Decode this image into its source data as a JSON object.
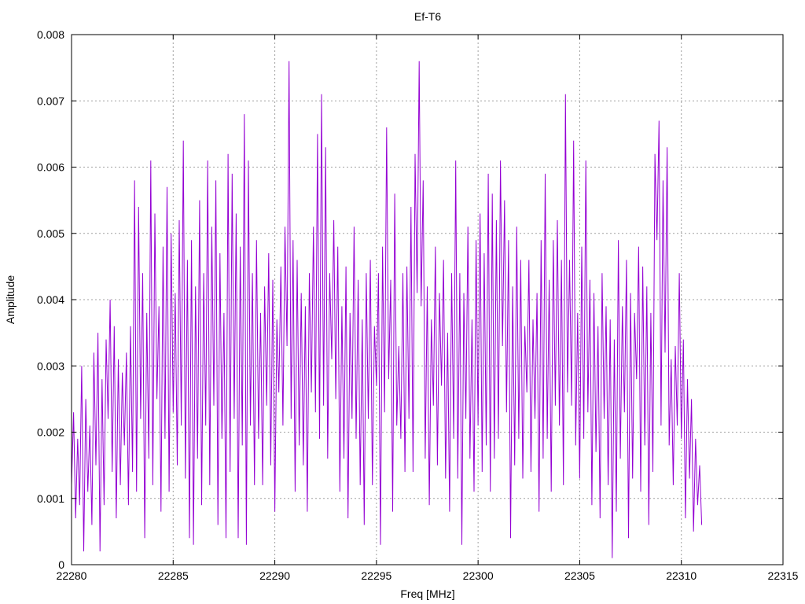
{
  "chart_data": {
    "type": "line",
    "title": "Ef-T6",
    "xlabel": "Freq [MHz]",
    "ylabel": "Amplitude",
    "xlim": [
      22280,
      22315
    ],
    "ylim": [
      0,
      0.008
    ],
    "grid": true,
    "legend": "none",
    "x_ticks": [
      "22280",
      "22285",
      "22290",
      "22295",
      "22300",
      "22305",
      "22310",
      "22315"
    ],
    "y_ticks": [
      "0",
      "0.001",
      "0.002",
      "0.003",
      "0.004",
      "0.005",
      "0.006",
      "0.007",
      "0.008"
    ],
    "series": [
      {
        "color": "#9400d3",
        "x_start": 22280.0,
        "x_step": 0.1,
        "values": [
          0.0012,
          0.0023,
          0.0007,
          0.0019,
          0.0009,
          0.003,
          0.0002,
          0.0025,
          0.0011,
          0.0021,
          0.0006,
          0.0032,
          0.0015,
          0.0035,
          0.0002,
          0.0028,
          0.0009,
          0.0034,
          0.0022,
          0.004,
          0.0014,
          0.0036,
          0.0007,
          0.0031,
          0.0012,
          0.0029,
          0.0018,
          0.0032,
          0.0009,
          0.0036,
          0.0014,
          0.0058,
          0.0011,
          0.0054,
          0.0022,
          0.0044,
          0.0004,
          0.0038,
          0.0016,
          0.0061,
          0.0012,
          0.0053,
          0.0025,
          0.0039,
          0.0008,
          0.0048,
          0.0019,
          0.0057,
          0.0011,
          0.005,
          0.0023,
          0.0041,
          0.0015,
          0.0052,
          0.0021,
          0.0064,
          0.0013,
          0.0046,
          0.0004,
          0.0049,
          0.0003,
          0.0042,
          0.0016,
          0.0055,
          0.0009,
          0.0044,
          0.0021,
          0.0061,
          0.0012,
          0.0051,
          0.0024,
          0.0058,
          0.0006,
          0.0047,
          0.0019,
          0.0038,
          0.0004,
          0.0062,
          0.0014,
          0.0059,
          0.0022,
          0.0053,
          0.0004,
          0.0048,
          0.0018,
          0.0068,
          0.0003,
          0.0061,
          0.0021,
          0.0044,
          0.0012,
          0.0049,
          0.0019,
          0.0038,
          0.0012,
          0.0042,
          0.0024,
          0.0047,
          0.0015,
          0.0043,
          0.0008,
          0.0037,
          0.0026,
          0.0045,
          0.0021,
          0.0051,
          0.0033,
          0.0076,
          0.0022,
          0.0049,
          0.0011,
          0.0046,
          0.0018,
          0.0041,
          0.0015,
          0.0039,
          0.0008,
          0.0044,
          0.0026,
          0.0051,
          0.0023,
          0.0065,
          0.0019,
          0.0071,
          0.0024,
          0.0063,
          0.0016,
          0.0044,
          0.0031,
          0.0052,
          0.0025,
          0.0048,
          0.0011,
          0.0039,
          0.0016,
          0.0045,
          0.0007,
          0.0038,
          0.0022,
          0.0051,
          0.0019,
          0.0043,
          0.0012,
          0.0037,
          0.0006,
          0.0044,
          0.0022,
          0.0046,
          0.0012,
          0.0036,
          0.0027,
          0.0044,
          0.0003,
          0.0048,
          0.0023,
          0.0066,
          0.0028,
          0.0043,
          0.0008,
          0.0056,
          0.0021,
          0.0033,
          0.0019,
          0.0044,
          0.0014,
          0.0045,
          0.0022,
          0.0054,
          0.0014,
          0.0062,
          0.0041,
          0.0076,
          0.0039,
          0.0058,
          0.0016,
          0.0042,
          0.0009,
          0.0037,
          0.0024,
          0.0048,
          0.0015,
          0.0041,
          0.0027,
          0.0046,
          0.0013,
          0.0035,
          0.0008,
          0.0044,
          0.0019,
          0.0061,
          0.0013,
          0.0044,
          0.0003,
          0.0041,
          0.0022,
          0.0051,
          0.0016,
          0.0037,
          0.0011,
          0.0049,
          0.0021,
          0.0053,
          0.0014,
          0.0047,
          0.0018,
          0.0059,
          0.0011,
          0.0056,
          0.0016,
          0.0052,
          0.0019,
          0.0061,
          0.0033,
          0.0055,
          0.0023,
          0.0049,
          0.0004,
          0.0042,
          0.0015,
          0.0051,
          0.0019,
          0.0046,
          0.0013,
          0.0036,
          0.0026,
          0.0046,
          0.0014,
          0.0037,
          0.0022,
          0.0041,
          0.0008,
          0.0049,
          0.0016,
          0.0059,
          0.0019,
          0.0043,
          0.0011,
          0.0049,
          0.0024,
          0.0052,
          0.0021,
          0.0046,
          0.0012,
          0.0071,
          0.0026,
          0.0046,
          0.0024,
          0.0064,
          0.0018,
          0.0038,
          0.0013,
          0.0048,
          0.0019,
          0.0061,
          0.0023,
          0.0043,
          0.0009,
          0.0041,
          0.0017,
          0.0036,
          0.0007,
          0.0044,
          0.0022,
          0.0039,
          0.0012,
          0.0037,
          0.0001,
          0.0034,
          0.0008,
          0.0049,
          0.0016,
          0.0039,
          0.0023,
          0.0046,
          0.0004,
          0.0041,
          0.0013,
          0.0038,
          0.0028,
          0.0048,
          0.0011,
          0.0045,
          0.0018,
          0.0042,
          0.0006,
          0.0038,
          0.0014,
          0.0062,
          0.0049,
          0.0067,
          0.0021,
          0.0058,
          0.0032,
          0.0063,
          0.0018,
          0.0031,
          0.0012,
          0.0033,
          0.0021,
          0.0044,
          0.0019,
          0.0034,
          0.0007,
          0.0028,
          0.0013,
          0.0025,
          0.0005,
          0.0019,
          0.0009,
          0.0015,
          0.0006
        ]
      }
    ]
  }
}
